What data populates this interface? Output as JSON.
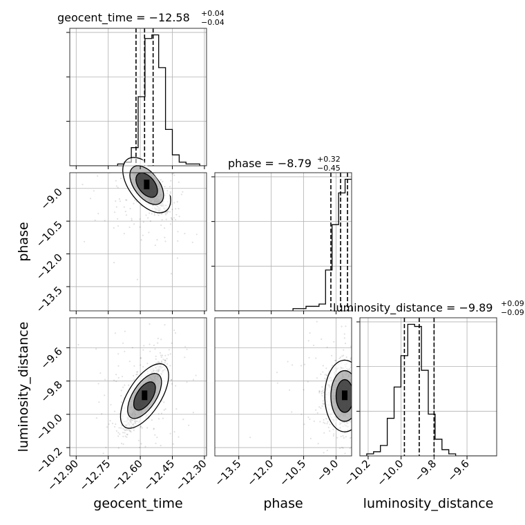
{
  "chart_data": {
    "type": "corner",
    "grid": true,
    "parameters": [
      "geocent_time",
      "phase",
      "luminosity_distance"
    ],
    "axis_labels": {
      "geocent_time": "geocent_time",
      "phase": "phase",
      "luminosity_distance": "luminosity_distance"
    },
    "titles": [
      {
        "param": "geocent_time",
        "text": "geocent_time = −12.58",
        "upper": "+0.04",
        "lower": "−0.04"
      },
      {
        "param": "phase",
        "text": "phase = −8.79",
        "upper": "+0.32",
        "lower": "−0.45"
      },
      {
        "param": "luminosity_distance",
        "text": "luminosity_distance = −9.89",
        "upper": "+0.09",
        "lower": "−0.09"
      }
    ],
    "ranges": {
      "geocent_time": [
        -12.93,
        -12.29
      ],
      "phase": [
        -14.61,
        -8.28
      ],
      "luminosity_distance": [
        -10.25,
        -9.42
      ]
    },
    "ticks": {
      "geocent_time": {
        "values": [
          -12.9,
          -12.75,
          -12.6,
          -12.45,
          -12.3
        ],
        "labels": [
          "−12.90",
          "−12.75",
          "−12.60",
          "−12.45",
          "−12.30"
        ]
      },
      "phase": {
        "values": [
          -13.5,
          -12.0,
          -10.5,
          -9.0
        ],
        "labels": [
          "−13.5",
          "−12.0",
          "−10.5",
          "−9.0"
        ]
      },
      "luminosity_distance": {
        "values": [
          -10.2,
          -10.0,
          -9.8,
          -9.6
        ],
        "labels": [
          "−10.2",
          "−10.0",
          "−9.8",
          "−9.6"
        ]
      }
    },
    "quantiles": {
      "geocent_time": [
        -12.62,
        -12.58,
        -12.54
      ],
      "phase": [
        -9.24,
        -8.79,
        -8.47
      ],
      "luminosity_distance": [
        -9.98,
        -9.89,
        -9.8
      ]
    },
    "histograms": {
      "geocent_time": {
        "edges_range": [
          -12.93,
          -12.29
        ],
        "counts": [
          0,
          0,
          0,
          0,
          0,
          0,
          0,
          1,
          2,
          10,
          38,
          70,
          72,
          54,
          20,
          6,
          2,
          1,
          1,
          0
        ]
      },
      "phase": {
        "edges_range": [
          -14.61,
          -8.28
        ],
        "counts": [
          0,
          0,
          0,
          0,
          0,
          0,
          0,
          0,
          0,
          0,
          0,
          0,
          1,
          1,
          2,
          2,
          3,
          18,
          38,
          52,
          58
        ]
      },
      "luminosity_distance": {
        "edges_range": [
          -10.25,
          -9.42
        ],
        "counts": [
          0,
          1,
          2,
          5,
          18,
          33,
          48,
          63,
          62,
          41,
          20,
          8,
          3,
          1,
          0,
          0,
          0,
          0,
          0,
          0
        ]
      }
    },
    "pairs": [
      {
        "x": "geocent_time",
        "y": "phase",
        "center": [
          -12.57,
          -8.85
        ],
        "spread": [
          0.04,
          0.6
        ],
        "tilt": -0.85
      },
      {
        "x": "geocent_time",
        "y": "luminosity_distance",
        "center": [
          -12.58,
          -9.89
        ],
        "spread": [
          0.04,
          0.09
        ],
        "tilt": 0.9
      },
      {
        "x": "phase",
        "y": "luminosity_distance",
        "center": [
          -8.6,
          -9.89
        ],
        "spread": [
          0.4,
          0.09
        ],
        "tilt": 0.0
      }
    ]
  }
}
